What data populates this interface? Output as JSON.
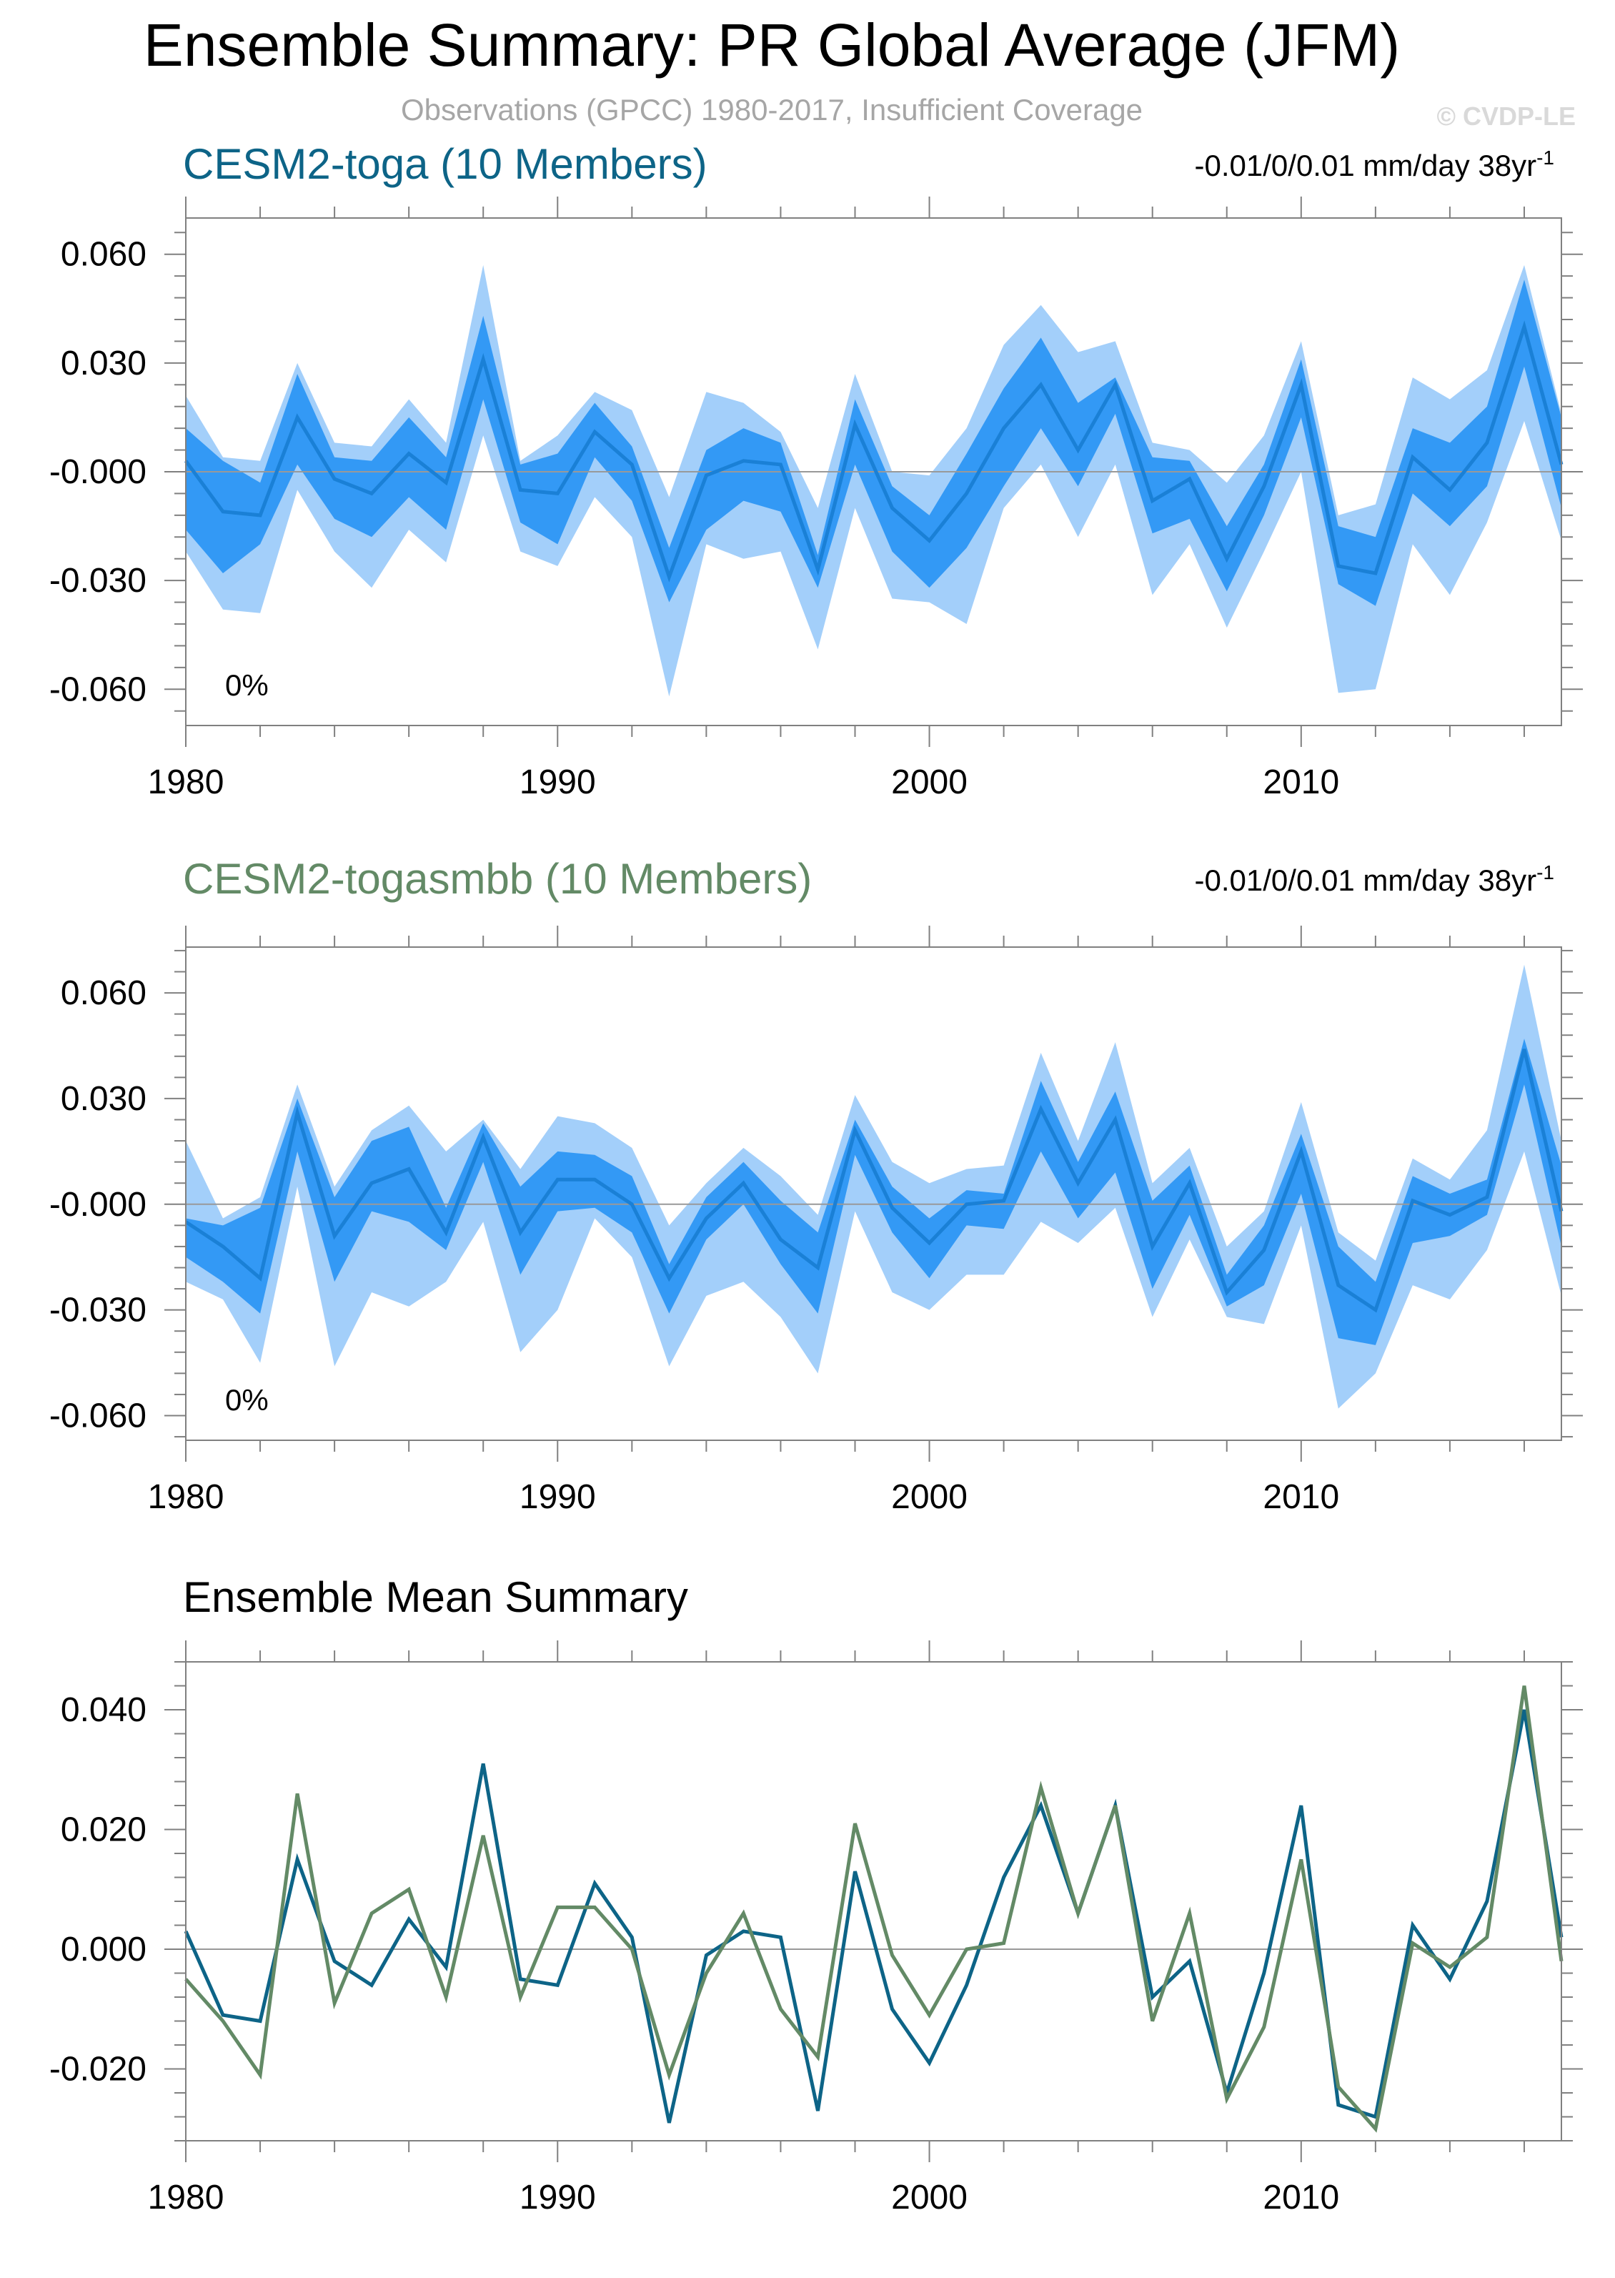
{
  "page": {
    "title": "Ensemble Summary: PR Global Average (JFM)",
    "subtitle": "Observations (GPCC) 1980-2017, Insufficient Coverage",
    "credit": "© CVDP-LE"
  },
  "colors": {
    "band_outer": "#a3cffa",
    "band_inner": "#3399f5",
    "mean_line": "#1a80d6",
    "toga": "#0d6487",
    "togasmbb": "#638a66",
    "axis": "#808080",
    "zero_line": "#999999",
    "subtitle": "#a6a6a6",
    "credit": "#d9d9d9"
  },
  "chart_data": [
    {
      "type": "area",
      "title": "CESM2-toga (10 Members)",
      "right_label_base": "-0.01/0/0.01 mm/day 38yr",
      "right_label_sup": "-1",
      "percent_label": "0%",
      "x_ticks": [
        1980,
        1990,
        2000,
        2010
      ],
      "xlim": [
        1980,
        2017
      ],
      "y_ticks": [
        "0.060",
        "0.030",
        "-0.000",
        "-0.030",
        "-0.060"
      ],
      "y_tick_values": [
        0.06,
        0.03,
        0,
        -0.03,
        -0.06
      ],
      "ylim": [
        -0.07,
        0.07
      ],
      "x": [
        1980,
        1981,
        1982,
        1983,
        1984,
        1985,
        1986,
        1987,
        1988,
        1989,
        1990,
        1991,
        1992,
        1993,
        1994,
        1995,
        1996,
        1997,
        1998,
        1999,
        2000,
        2001,
        2002,
        2003,
        2004,
        2005,
        2006,
        2007,
        2008,
        2009,
        2010,
        2011,
        2012,
        2013,
        2014,
        2015,
        2016,
        2017
      ],
      "mean": [
        0.003,
        -0.011,
        -0.012,
        0.015,
        -0.002,
        -0.006,
        0.005,
        -0.003,
        0.031,
        -0.005,
        -0.006,
        0.011,
        0.002,
        -0.029,
        -0.001,
        0.003,
        0.002,
        -0.027,
        0.013,
        -0.01,
        -0.019,
        -0.006,
        0.012,
        0.024,
        0.006,
        0.024,
        -0.008,
        -0.002,
        -0.024,
        -0.004,
        0.024,
        -0.026,
        -0.028,
        0.004,
        -0.005,
        0.008,
        0.04,
        0.002
      ],
      "band_outer_min": [
        -0.022,
        -0.038,
        -0.039,
        -0.005,
        -0.022,
        -0.032,
        -0.016,
        -0.025,
        0.01,
        -0.022,
        -0.026,
        -0.007,
        -0.018,
        -0.062,
        -0.02,
        -0.024,
        -0.022,
        -0.049,
        -0.01,
        -0.035,
        -0.036,
        -0.042,
        -0.01,
        0.002,
        -0.018,
        0.002,
        -0.034,
        -0.02,
        -0.043,
        -0.022,
        0.0,
        -0.061,
        -0.06,
        -0.02,
        -0.034,
        -0.014,
        0.014,
        -0.019
      ],
      "band_outer_max": [
        0.021,
        0.004,
        0.003,
        0.03,
        0.008,
        0.007,
        0.02,
        0.008,
        0.057,
        0.003,
        0.01,
        0.022,
        0.017,
        -0.007,
        0.022,
        0.019,
        0.011,
        -0.01,
        0.027,
        0.0,
        -0.001,
        0.012,
        0.035,
        0.046,
        0.033,
        0.036,
        0.008,
        0.006,
        -0.003,
        0.01,
        0.036,
        -0.012,
        -0.009,
        0.026,
        0.02,
        0.028,
        0.057,
        0.016
      ],
      "band_inner_min": [
        -0.016,
        -0.028,
        -0.02,
        0.002,
        -0.013,
        -0.018,
        -0.007,
        -0.016,
        0.02,
        -0.014,
        -0.02,
        0.004,
        -0.008,
        -0.036,
        -0.016,
        -0.008,
        -0.011,
        -0.032,
        0.002,
        -0.022,
        -0.032,
        -0.021,
        -0.004,
        0.012,
        -0.004,
        0.016,
        -0.017,
        -0.013,
        -0.033,
        -0.012,
        0.015,
        -0.031,
        -0.037,
        -0.006,
        -0.015,
        -0.004,
        0.029,
        -0.01
      ],
      "band_inner_max": [
        0.012,
        0.003,
        -0.003,
        0.027,
        0.004,
        0.003,
        0.015,
        0.004,
        0.043,
        0.002,
        0.005,
        0.019,
        0.007,
        -0.021,
        0.006,
        0.012,
        0.008,
        -0.023,
        0.02,
        -0.004,
        -0.012,
        0.005,
        0.023,
        0.037,
        0.019,
        0.026,
        0.004,
        0.003,
        -0.015,
        0.002,
        0.031,
        -0.015,
        -0.018,
        0.012,
        0.008,
        0.018,
        0.053,
        0.015
      ]
    },
    {
      "type": "area",
      "title": "CESM2-togasmbb (10 Members)",
      "right_label_base": "-0.01/0/0.01 mm/day 38yr",
      "right_label_sup": "-1",
      "percent_label": "0%",
      "x_ticks": [
        1980,
        1990,
        2000,
        2010
      ],
      "xlim": [
        1980,
        2017
      ],
      "y_ticks": [
        "0.060",
        "0.030",
        "-0.000",
        "-0.030",
        "-0.060"
      ],
      "y_tick_values": [
        0.06,
        0.03,
        0,
        -0.03,
        -0.06
      ],
      "ylim": [
        -0.067,
        0.073
      ],
      "x": [
        1980,
        1981,
        1982,
        1983,
        1984,
        1985,
        1986,
        1987,
        1988,
        1989,
        1990,
        1991,
        1992,
        1993,
        1994,
        1995,
        1996,
        1997,
        1998,
        1999,
        2000,
        2001,
        2002,
        2003,
        2004,
        2005,
        2006,
        2007,
        2008,
        2009,
        2010,
        2011,
        2012,
        2013,
        2014,
        2015,
        2016,
        2017
      ],
      "mean": [
        -0.005,
        -0.012,
        -0.021,
        0.026,
        -0.009,
        0.006,
        0.01,
        -0.008,
        0.019,
        -0.008,
        0.007,
        0.007,
        0.0,
        -0.021,
        -0.004,
        0.006,
        -0.01,
        -0.018,
        0.021,
        -0.001,
        -0.011,
        0.0,
        0.001,
        0.027,
        0.006,
        0.024,
        -0.012,
        0.006,
        -0.025,
        -0.013,
        0.015,
        -0.023,
        -0.03,
        0.001,
        -0.003,
        0.002,
        0.044,
        -0.002
      ],
      "band_outer_min": [
        -0.022,
        -0.027,
        -0.045,
        0.005,
        -0.046,
        -0.025,
        -0.029,
        -0.022,
        -0.005,
        -0.042,
        -0.03,
        -0.004,
        -0.015,
        -0.046,
        -0.026,
        -0.022,
        -0.032,
        -0.048,
        -0.002,
        -0.025,
        -0.03,
        -0.02,
        -0.02,
        -0.005,
        -0.011,
        -0.001,
        -0.032,
        -0.01,
        -0.032,
        -0.034,
        -0.006,
        -0.058,
        -0.048,
        -0.023,
        -0.027,
        -0.013,
        0.015,
        -0.026
      ],
      "band_outer_max": [
        0.018,
        -0.004,
        0.002,
        0.034,
        0.005,
        0.021,
        0.028,
        0.015,
        0.024,
        0.01,
        0.025,
        0.023,
        0.016,
        -0.006,
        0.006,
        0.016,
        0.008,
        -0.003,
        0.031,
        0.012,
        0.006,
        0.01,
        0.011,
        0.043,
        0.018,
        0.046,
        0.006,
        0.016,
        -0.012,
        -0.002,
        0.029,
        -0.008,
        -0.016,
        0.013,
        0.007,
        0.021,
        0.068,
        0.018
      ],
      "band_inner_min": [
        -0.015,
        -0.022,
        -0.031,
        0.015,
        -0.022,
        -0.002,
        -0.005,
        -0.013,
        0.012,
        -0.02,
        -0.002,
        -0.001,
        -0.008,
        -0.031,
        -0.01,
        0.0,
        -0.017,
        -0.031,
        0.014,
        -0.008,
        -0.021,
        -0.006,
        -0.007,
        0.015,
        -0.004,
        0.009,
        -0.024,
        -0.003,
        -0.029,
        -0.023,
        0.003,
        -0.038,
        -0.04,
        -0.011,
        -0.009,
        -0.003,
        0.034,
        -0.012
      ],
      "band_inner_max": [
        -0.004,
        -0.006,
        -0.001,
        0.03,
        0.002,
        0.018,
        0.022,
        -0.001,
        0.023,
        0.005,
        0.015,
        0.014,
        0.008,
        -0.017,
        0.002,
        0.012,
        0.001,
        -0.008,
        0.024,
        0.005,
        -0.004,
        0.004,
        0.003,
        0.035,
        0.012,
        0.032,
        0.001,
        0.011,
        -0.02,
        -0.006,
        0.02,
        -0.012,
        -0.022,
        0.008,
        0.003,
        0.007,
        0.047,
        0.011
      ]
    },
    {
      "type": "line",
      "title": "Ensemble Mean Summary",
      "x_ticks": [
        1980,
        1990,
        2000,
        2010
      ],
      "xlim": [
        1980,
        2017
      ],
      "y_ticks": [
        "0.040",
        "0.020",
        "0.000",
        "-0.020"
      ],
      "y_tick_values": [
        0.04,
        0.02,
        0,
        -0.02
      ],
      "ylim": [
        -0.032,
        0.048
      ],
      "x": [
        1980,
        1981,
        1982,
        1983,
        1984,
        1985,
        1986,
        1987,
        1988,
        1989,
        1990,
        1991,
        1992,
        1993,
        1994,
        1995,
        1996,
        1997,
        1998,
        1999,
        2000,
        2001,
        2002,
        2003,
        2004,
        2005,
        2006,
        2007,
        2008,
        2009,
        2010,
        2011,
        2012,
        2013,
        2014,
        2015,
        2016,
        2017
      ],
      "series": [
        {
          "name": "CESM2-toga",
          "color_key": "toga",
          "values": [
            0.003,
            -0.011,
            -0.012,
            0.015,
            -0.002,
            -0.006,
            0.005,
            -0.003,
            0.031,
            -0.005,
            -0.006,
            0.011,
            0.002,
            -0.029,
            -0.001,
            0.003,
            0.002,
            -0.027,
            0.013,
            -0.01,
            -0.019,
            -0.006,
            0.012,
            0.024,
            0.006,
            0.024,
            -0.008,
            -0.002,
            -0.024,
            -0.004,
            0.024,
            -0.026,
            -0.028,
            0.004,
            -0.005,
            0.008,
            0.04,
            0.002
          ]
        },
        {
          "name": "CESM2-togasmbb",
          "color_key": "togasmbb",
          "values": [
            -0.005,
            -0.012,
            -0.021,
            0.026,
            -0.009,
            0.006,
            0.01,
            -0.008,
            0.019,
            -0.008,
            0.007,
            0.007,
            0.0,
            -0.021,
            -0.004,
            0.006,
            -0.01,
            -0.018,
            0.021,
            -0.001,
            -0.011,
            0.0,
            0.001,
            0.027,
            0.006,
            0.024,
            -0.012,
            0.006,
            -0.025,
            -0.013,
            0.015,
            -0.023,
            -0.03,
            0.001,
            -0.003,
            0.002,
            0.044,
            -0.002
          ]
        }
      ]
    }
  ]
}
